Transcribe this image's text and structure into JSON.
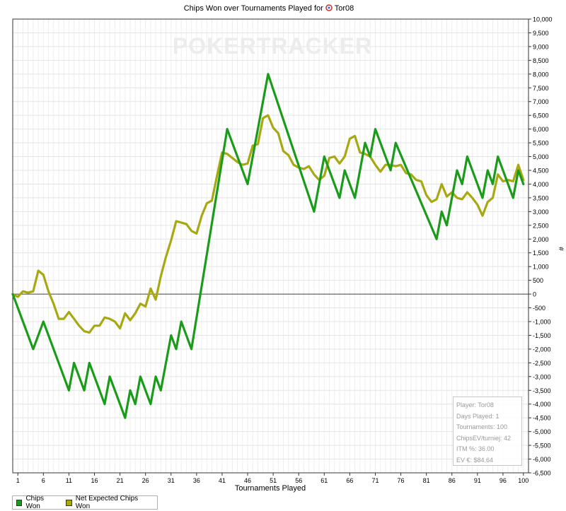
{
  "chart_data": {
    "type": "line",
    "title": "Chips Won over Tournaments Played for",
    "player_name_in_title": "Tor08",
    "watermark": "POKERTRACKER",
    "xlabel": "Tournaments Played",
    "ylabel": "#",
    "xlim": [
      0,
      101
    ],
    "ylim": [
      -6500,
      10000
    ],
    "x_ticks": [
      1,
      6,
      11,
      16,
      21,
      26,
      31,
      36,
      41,
      46,
      51,
      56,
      61,
      66,
      71,
      76,
      81,
      86,
      91,
      96,
      100
    ],
    "y_ticks": [
      10000,
      9500,
      9000,
      8500,
      8000,
      7500,
      7000,
      6500,
      6000,
      5500,
      5000,
      4500,
      4000,
      3500,
      3000,
      2500,
      2000,
      1500,
      1000,
      500,
      0,
      -500,
      -1000,
      -1500,
      -2000,
      -2500,
      -3000,
      -3500,
      -4000,
      -4500,
      -5000,
      -5500,
      -6000,
      -6500
    ],
    "y_tick_labels": [
      "10,000",
      "9,500",
      "9,000",
      "8,500",
      "8,000",
      "7,500",
      "7,000",
      "6,500",
      "6,000",
      "5,500",
      "5,000",
      "4,500",
      "4,000",
      "3,500",
      "3,000",
      "2,500",
      "2,000",
      "1,500",
      "1,000",
      "500",
      "0",
      "-500",
      "-1,000",
      "-1,500",
      "-2,000",
      "-2,500",
      "-3,000",
      "-3,500",
      "-4,000",
      "-4,500",
      "-5,000",
      "-5,500",
      "-6,000",
      "-6,500"
    ],
    "grid": true,
    "legend_position": "bottom-left",
    "series": [
      {
        "name": "Chips Won",
        "color": "#1a9c1a",
        "points": [
          [
            0,
            0
          ],
          [
            4,
            -2000
          ],
          [
            6,
            -1000
          ],
          [
            11,
            -3500
          ],
          [
            12,
            -2500
          ],
          [
            14,
            -3500
          ],
          [
            15,
            -2500
          ],
          [
            18,
            -4000
          ],
          [
            19,
            -3000
          ],
          [
            21,
            -4000
          ],
          [
            22,
            -4500
          ],
          [
            23,
            -3500
          ],
          [
            24,
            -4000
          ],
          [
            25,
            -3000
          ],
          [
            27,
            -4000
          ],
          [
            28,
            -3000
          ],
          [
            29,
            -3500
          ],
          [
            31,
            -1500
          ],
          [
            32,
            -2000
          ],
          [
            33,
            -1000
          ],
          [
            35,
            -2000
          ],
          [
            42,
            6000
          ],
          [
            46,
            4000
          ],
          [
            50,
            8000
          ],
          [
            59,
            3000
          ],
          [
            61,
            5000
          ],
          [
            64,
            3500
          ],
          [
            65,
            4500
          ],
          [
            67,
            3500
          ],
          [
            69,
            5500
          ],
          [
            70,
            5000
          ],
          [
            71,
            6000
          ],
          [
            74,
            4500
          ],
          [
            75,
            5500
          ],
          [
            83,
            2000
          ],
          [
            84,
            3000
          ],
          [
            85,
            2500
          ],
          [
            87,
            4500
          ],
          [
            88,
            4000
          ],
          [
            89,
            5000
          ],
          [
            92,
            3500
          ],
          [
            93,
            4500
          ],
          [
            94,
            4000
          ],
          [
            95,
            5000
          ],
          [
            98,
            3500
          ],
          [
            99,
            4500
          ],
          [
            100,
            4000
          ]
        ]
      },
      {
        "name": "Net Expected Chips Won",
        "color": "#a8a812",
        "points": [
          [
            0,
            0
          ],
          [
            1,
            -100
          ],
          [
            2,
            100
          ],
          [
            3,
            50
          ],
          [
            4,
            100
          ],
          [
            5,
            850
          ],
          [
            6,
            700
          ],
          [
            7,
            100
          ],
          [
            8,
            -350
          ],
          [
            9,
            -900
          ],
          [
            10,
            -900
          ],
          [
            11,
            -650
          ],
          [
            12,
            -900
          ],
          [
            13,
            -1150
          ],
          [
            14,
            -1350
          ],
          [
            15,
            -1400
          ],
          [
            16,
            -1150
          ],
          [
            17,
            -1150
          ],
          [
            18,
            -850
          ],
          [
            19,
            -900
          ],
          [
            20,
            -1000
          ],
          [
            21,
            -1250
          ],
          [
            22,
            -700
          ],
          [
            23,
            -950
          ],
          [
            24,
            -700
          ],
          [
            25,
            -350
          ],
          [
            26,
            -450
          ],
          [
            27,
            200
          ],
          [
            28,
            -200
          ],
          [
            29,
            650
          ],
          [
            30,
            1350
          ],
          [
            31,
            1950
          ],
          [
            32,
            2650
          ],
          [
            33,
            2600
          ],
          [
            34,
            2550
          ],
          [
            35,
            2300
          ],
          [
            36,
            2200
          ],
          [
            37,
            2850
          ],
          [
            38,
            3300
          ],
          [
            39,
            3400
          ],
          [
            40,
            4300
          ],
          [
            41,
            5150
          ],
          [
            42,
            5100
          ],
          [
            43,
            4950
          ],
          [
            44,
            4800
          ],
          [
            45,
            4700
          ],
          [
            46,
            4750
          ],
          [
            47,
            5400
          ],
          [
            48,
            5450
          ],
          [
            49,
            6400
          ],
          [
            50,
            6500
          ],
          [
            51,
            6050
          ],
          [
            52,
            5850
          ],
          [
            53,
            5200
          ],
          [
            54,
            5050
          ],
          [
            55,
            4700
          ],
          [
            56,
            4600
          ],
          [
            57,
            4550
          ],
          [
            58,
            4650
          ],
          [
            59,
            4350
          ],
          [
            60,
            4150
          ],
          [
            61,
            4300
          ],
          [
            62,
            4950
          ],
          [
            63,
            5000
          ],
          [
            64,
            4750
          ],
          [
            65,
            5000
          ],
          [
            66,
            5650
          ],
          [
            67,
            5750
          ],
          [
            68,
            5150
          ],
          [
            69,
            5100
          ],
          [
            70,
            5000
          ],
          [
            71,
            4700
          ],
          [
            72,
            4450
          ],
          [
            73,
            4700
          ],
          [
            74,
            4700
          ],
          [
            75,
            4650
          ],
          [
            76,
            4700
          ],
          [
            77,
            4400
          ],
          [
            78,
            4350
          ],
          [
            79,
            4150
          ],
          [
            80,
            4100
          ],
          [
            81,
            3600
          ],
          [
            82,
            3350
          ],
          [
            83,
            3450
          ],
          [
            84,
            4000
          ],
          [
            85,
            3550
          ],
          [
            86,
            3700
          ],
          [
            87,
            3500
          ],
          [
            88,
            3450
          ],
          [
            89,
            3700
          ],
          [
            90,
            3500
          ],
          [
            91,
            3250
          ],
          [
            92,
            2850
          ],
          [
            93,
            3350
          ],
          [
            94,
            3500
          ],
          [
            95,
            4350
          ],
          [
            96,
            4100
          ],
          [
            97,
            4150
          ],
          [
            98,
            4100
          ],
          [
            99,
            4700
          ],
          [
            100,
            4150
          ]
        ]
      }
    ]
  },
  "stats": [
    "Player: Tor08",
    "Days Played: 1",
    "Tournaments: 100",
    "ChipsEV/turniej: 42",
    "ITM %: 36.00",
    "EV €: $84.64"
  ],
  "legend": [
    {
      "label": "Chips Won",
      "color": "#1a9c1a"
    },
    {
      "label": "Net Expected Chips Won",
      "color": "#a8a812"
    }
  ]
}
